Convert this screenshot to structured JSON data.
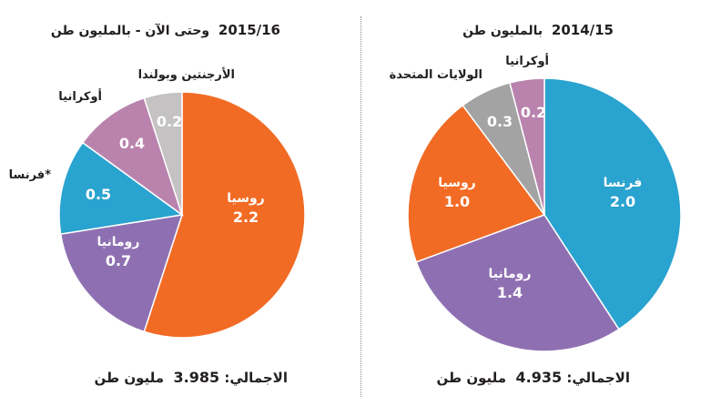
{
  "chart_data": [
    {
      "type": "pie",
      "title_year": "2015/16",
      "title_text": "وحتى الآن - بالمليون طن",
      "total_label": "الاجمالي:",
      "total_value": "3.985",
      "total_unit": "مليون طن",
      "slices": [
        {
          "label": "روسيا",
          "value": 2.2,
          "display": "2.2",
          "color": "#f26b24"
        },
        {
          "label": "رومانيا",
          "value": 0.7,
          "display": "0.7",
          "color": "#8e70b2"
        },
        {
          "label": "فرنسا*",
          "value": 0.5,
          "display": "0.5",
          "color": "#29a3cf"
        },
        {
          "label": "أوكرانيا",
          "value": 0.4,
          "display": "0.4",
          "color": "#b983ae"
        },
        {
          "label": "الأرجنتين وبولندا",
          "value": 0.2,
          "display": "0.2",
          "color": "#c4c2c3"
        }
      ]
    },
    {
      "type": "pie",
      "title_year": "2014/15",
      "title_text": "بالمليون طن",
      "total_label": "الاجمالي:",
      "total_value": "4.935",
      "total_unit": "مليون طن",
      "slices": [
        {
          "label": "فرنسا",
          "value": 2.0,
          "display": "2.0",
          "color": "#29a3cf"
        },
        {
          "label": "رومانيا",
          "value": 1.4,
          "display": "1.4",
          "color": "#8e70b2"
        },
        {
          "label": "روسيا",
          "value": 1.0,
          "display": "1.0",
          "color": "#f26b24"
        },
        {
          "label": "الولايات المتحدة",
          "value": 0.3,
          "display": "0.3",
          "color": "#a3a3a3"
        },
        {
          "label": "أوكرانيا",
          "value": 0.2,
          "display": "0.2",
          "color": "#b983ae"
        }
      ]
    }
  ]
}
